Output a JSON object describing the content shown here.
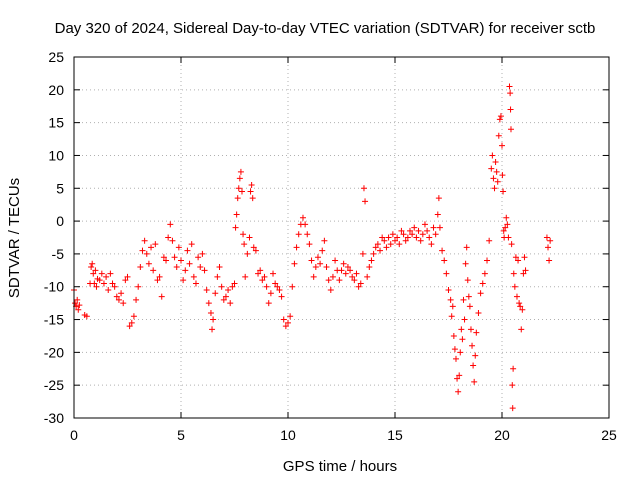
{
  "chart_data": {
    "type": "scatter",
    "title": "Day 320 of 2024, Sidereal Day-to-day VTEC variation (SDTVAR) for receiver sctb",
    "xlabel": "GPS time / hours",
    "ylabel": "SDTVAR / TECUs",
    "xlim": [
      0,
      25
    ],
    "ylim": [
      -30,
      25
    ],
    "xticks": [
      0,
      5,
      10,
      15,
      20,
      25
    ],
    "yticks": [
      -30,
      -25,
      -20,
      -15,
      -10,
      -5,
      0,
      5,
      10,
      15,
      20,
      25
    ],
    "grid": true,
    "marker": "plus",
    "color": "#ff0000",
    "series": [
      {
        "name": "sctb",
        "points": [
          [
            0.0,
            -10.5
          ],
          [
            0.05,
            -12.5
          ],
          [
            0.1,
            -13.0
          ],
          [
            0.15,
            -12.0
          ],
          [
            0.2,
            -13.5
          ],
          [
            0.25,
            -12.8
          ],
          [
            0.5,
            -14.3
          ],
          [
            0.6,
            -14.5
          ],
          [
            0.75,
            -9.5
          ],
          [
            0.8,
            -7.0
          ],
          [
            0.85,
            -6.5
          ],
          [
            0.9,
            -8.0
          ],
          [
            0.95,
            -9.5
          ],
          [
            1.0,
            -7.5
          ],
          [
            1.05,
            -10.0
          ],
          [
            1.1,
            -8.8
          ],
          [
            1.2,
            -9.0
          ],
          [
            1.3,
            -8.0
          ],
          [
            1.4,
            -9.5
          ],
          [
            1.5,
            -8.5
          ],
          [
            1.6,
            -10.5
          ],
          [
            1.7,
            -8.0
          ],
          [
            1.8,
            -9.5
          ],
          [
            1.9,
            -10.0
          ],
          [
            2.0,
            -11.5
          ],
          [
            2.1,
            -12.0
          ],
          [
            2.2,
            -11.0
          ],
          [
            2.3,
            -12.5
          ],
          [
            2.4,
            -9.0
          ],
          [
            2.5,
            -8.5
          ],
          [
            2.6,
            -16.0
          ],
          [
            2.7,
            -15.5
          ],
          [
            2.8,
            -14.5
          ],
          [
            2.9,
            -12.0
          ],
          [
            3.0,
            -10.0
          ],
          [
            3.1,
            -7.0
          ],
          [
            3.2,
            -4.5
          ],
          [
            3.3,
            -3.0
          ],
          [
            3.4,
            -5.0
          ],
          [
            3.5,
            -6.5
          ],
          [
            3.6,
            -4.0
          ],
          [
            3.7,
            -7.5
          ],
          [
            3.8,
            -3.5
          ],
          [
            3.9,
            -9.0
          ],
          [
            4.0,
            -8.5
          ],
          [
            4.1,
            -11.5
          ],
          [
            4.2,
            -5.5
          ],
          [
            4.3,
            -6.0
          ],
          [
            4.4,
            -2.5
          ],
          [
            4.5,
            -0.5
          ],
          [
            4.6,
            -3.0
          ],
          [
            4.7,
            -5.5
          ],
          [
            4.8,
            -7.0
          ],
          [
            4.9,
            -4.0
          ],
          [
            5.0,
            -6.0
          ],
          [
            5.1,
            -9.0
          ],
          [
            5.2,
            -7.5
          ],
          [
            5.3,
            -4.5
          ],
          [
            5.4,
            -6.5
          ],
          [
            5.5,
            -3.5
          ],
          [
            5.6,
            -8.5
          ],
          [
            5.7,
            -9.5
          ],
          [
            5.8,
            -5.5
          ],
          [
            5.9,
            -7.0
          ],
          [
            6.0,
            -5.0
          ],
          [
            6.1,
            -7.5
          ],
          [
            6.2,
            -10.5
          ],
          [
            6.3,
            -12.5
          ],
          [
            6.4,
            -14.0
          ],
          [
            6.45,
            -16.5
          ],
          [
            6.5,
            -15.0
          ],
          [
            6.6,
            -11.0
          ],
          [
            6.7,
            -8.5
          ],
          [
            6.8,
            -7.0
          ],
          [
            6.9,
            -10.0
          ],
          [
            7.0,
            -12.0
          ],
          [
            7.1,
            -11.5
          ],
          [
            7.2,
            -10.5
          ],
          [
            7.3,
            -12.5
          ],
          [
            7.4,
            -10.0
          ],
          [
            7.5,
            -9.5
          ],
          [
            7.55,
            -1.0
          ],
          [
            7.6,
            1.0
          ],
          [
            7.65,
            3.5
          ],
          [
            7.7,
            5.0
          ],
          [
            7.75,
            6.5
          ],
          [
            7.8,
            7.5
          ],
          [
            7.85,
            4.5
          ],
          [
            7.9,
            -2.0
          ],
          [
            7.95,
            -3.5
          ],
          [
            8.0,
            -8.5
          ],
          [
            8.1,
            -5.0
          ],
          [
            8.2,
            -2.5
          ],
          [
            8.25,
            4.5
          ],
          [
            8.3,
            5.5
          ],
          [
            8.35,
            3.5
          ],
          [
            8.4,
            -4.0
          ],
          [
            8.5,
            -4.5
          ],
          [
            8.6,
            -8.0
          ],
          [
            8.7,
            -7.5
          ],
          [
            8.8,
            -9.0
          ],
          [
            8.9,
            -8.5
          ],
          [
            9.0,
            -10.0
          ],
          [
            9.1,
            -12.5
          ],
          [
            9.2,
            -11.0
          ],
          [
            9.3,
            -8.0
          ],
          [
            9.4,
            -9.5
          ],
          [
            9.5,
            -10.0
          ],
          [
            9.6,
            -10.5
          ],
          [
            9.7,
            -11.5
          ],
          [
            9.8,
            -15.0
          ],
          [
            9.9,
            -16.0
          ],
          [
            10.0,
            -15.5
          ],
          [
            10.1,
            -14.5
          ],
          [
            10.2,
            -10.0
          ],
          [
            10.3,
            -6.5
          ],
          [
            10.4,
            -4.0
          ],
          [
            10.5,
            -2.0
          ],
          [
            10.6,
            -0.5
          ],
          [
            10.7,
            0.5
          ],
          [
            10.8,
            -0.5
          ],
          [
            10.9,
            -2.0
          ],
          [
            11.0,
            -3.5
          ],
          [
            11.1,
            -6.0
          ],
          [
            11.2,
            -8.5
          ],
          [
            11.3,
            -7.0
          ],
          [
            11.4,
            -5.5
          ],
          [
            11.5,
            -6.5
          ],
          [
            11.6,
            -4.5
          ],
          [
            11.7,
            -3.0
          ],
          [
            11.8,
            -7.0
          ],
          [
            11.9,
            -9.0
          ],
          [
            12.0,
            -10.5
          ],
          [
            12.1,
            -8.5
          ],
          [
            12.2,
            -6.0
          ],
          [
            12.3,
            -7.5
          ],
          [
            12.4,
            -9.0
          ],
          [
            12.5,
            -7.5
          ],
          [
            12.6,
            -6.5
          ],
          [
            12.7,
            -8.0
          ],
          [
            12.8,
            -7.0
          ],
          [
            12.9,
            -7.5
          ],
          [
            13.0,
            -8.5
          ],
          [
            13.1,
            -9.0
          ],
          [
            13.2,
            -8.0
          ],
          [
            13.3,
            -10.0
          ],
          [
            13.4,
            -9.5
          ],
          [
            13.5,
            -5.0
          ],
          [
            13.55,
            5.0
          ],
          [
            13.6,
            3.0
          ],
          [
            13.7,
            -8.5
          ],
          [
            13.8,
            -7.0
          ],
          [
            13.9,
            -6.0
          ],
          [
            14.0,
            -5.0
          ],
          [
            14.1,
            -4.0
          ],
          [
            14.2,
            -3.5
          ],
          [
            14.3,
            -4.5
          ],
          [
            14.4,
            -2.5
          ],
          [
            14.5,
            -3.0
          ],
          [
            14.6,
            -4.0
          ],
          [
            14.7,
            -2.5
          ],
          [
            14.8,
            -3.5
          ],
          [
            14.9,
            -2.0
          ],
          [
            15.0,
            -3.0
          ],
          [
            15.1,
            -2.5
          ],
          [
            15.2,
            -3.5
          ],
          [
            15.3,
            -1.5
          ],
          [
            15.4,
            -2.0
          ],
          [
            15.5,
            -3.0
          ],
          [
            15.6,
            -2.5
          ],
          [
            15.7,
            -1.5
          ],
          [
            15.8,
            -2.0
          ],
          [
            15.9,
            -1.0
          ],
          [
            16.0,
            -2.5
          ],
          [
            16.1,
            -1.5
          ],
          [
            16.2,
            -3.0
          ],
          [
            16.3,
            -2.0
          ],
          [
            16.4,
            -0.5
          ],
          [
            16.5,
            -1.5
          ],
          [
            16.6,
            -2.5
          ],
          [
            16.7,
            -3.5
          ],
          [
            16.8,
            -1.0
          ],
          [
            16.9,
            -2.0
          ],
          [
            17.0,
            1.0
          ],
          [
            17.05,
            3.5
          ],
          [
            17.1,
            -1.0
          ],
          [
            17.2,
            -4.5
          ],
          [
            17.3,
            -6.0
          ],
          [
            17.4,
            -8.0
          ],
          [
            17.5,
            -10.5
          ],
          [
            17.6,
            -12.0
          ],
          [
            17.65,
            -14.5
          ],
          [
            17.7,
            -13.0
          ],
          [
            17.75,
            -17.5
          ],
          [
            17.8,
            -19.5
          ],
          [
            17.85,
            -21.0
          ],
          [
            17.9,
            -24.0
          ],
          [
            17.95,
            -26.0
          ],
          [
            18.0,
            -23.5
          ],
          [
            18.05,
            -20.0
          ],
          [
            18.1,
            -16.5
          ],
          [
            18.15,
            -18.0
          ],
          [
            18.2,
            -12.0
          ],
          [
            18.25,
            -15.0
          ],
          [
            18.3,
            -6.5
          ],
          [
            18.35,
            -4.0
          ],
          [
            18.4,
            -9.0
          ],
          [
            18.45,
            -11.5
          ],
          [
            18.5,
            -13.0
          ],
          [
            18.55,
            -16.5
          ],
          [
            18.6,
            -19.0
          ],
          [
            18.65,
            -22.0
          ],
          [
            18.7,
            -24.5
          ],
          [
            18.75,
            -20.5
          ],
          [
            18.8,
            -17.0
          ],
          [
            18.9,
            -14.0
          ],
          [
            19.0,
            -11.0
          ],
          [
            19.1,
            -9.5
          ],
          [
            19.2,
            -8.0
          ],
          [
            19.3,
            -6.0
          ],
          [
            19.4,
            -3.0
          ],
          [
            19.5,
            8.0
          ],
          [
            19.55,
            10.0
          ],
          [
            19.6,
            6.5
          ],
          [
            19.65,
            5.0
          ],
          [
            19.7,
            9.0
          ],
          [
            19.75,
            7.5
          ],
          [
            19.8,
            6.0
          ],
          [
            19.85,
            13.0
          ],
          [
            19.9,
            15.5
          ],
          [
            19.95,
            16.0
          ],
          [
            20.0,
            11.5
          ],
          [
            20.02,
            7.0
          ],
          [
            20.05,
            4.5
          ],
          [
            20.08,
            -1.5
          ],
          [
            20.1,
            -2.5
          ],
          [
            20.15,
            -1.0
          ],
          [
            20.2,
            0.5
          ],
          [
            20.25,
            -0.5
          ],
          [
            20.3,
            -2.5
          ],
          [
            20.35,
            20.5
          ],
          [
            20.38,
            19.5
          ],
          [
            20.4,
            17.0
          ],
          [
            20.42,
            14.0
          ],
          [
            20.45,
            -3.5
          ],
          [
            20.48,
            -25.0
          ],
          [
            20.5,
            -28.5
          ],
          [
            20.52,
            -22.5
          ],
          [
            20.55,
            -8.0
          ],
          [
            20.6,
            -10.0
          ],
          [
            20.65,
            -5.5
          ],
          [
            20.7,
            -11.5
          ],
          [
            20.75,
            -6.0
          ],
          [
            20.8,
            -12.5
          ],
          [
            20.85,
            -13.0
          ],
          [
            20.9,
            -16.5
          ],
          [
            20.95,
            -13.5
          ],
          [
            21.0,
            -8.0
          ],
          [
            21.05,
            -5.5
          ],
          [
            21.1,
            -7.5
          ],
          [
            22.1,
            -2.5
          ],
          [
            22.15,
            -4.0
          ],
          [
            22.2,
            -6.0
          ],
          [
            22.25,
            -3.0
          ]
        ]
      }
    ]
  }
}
